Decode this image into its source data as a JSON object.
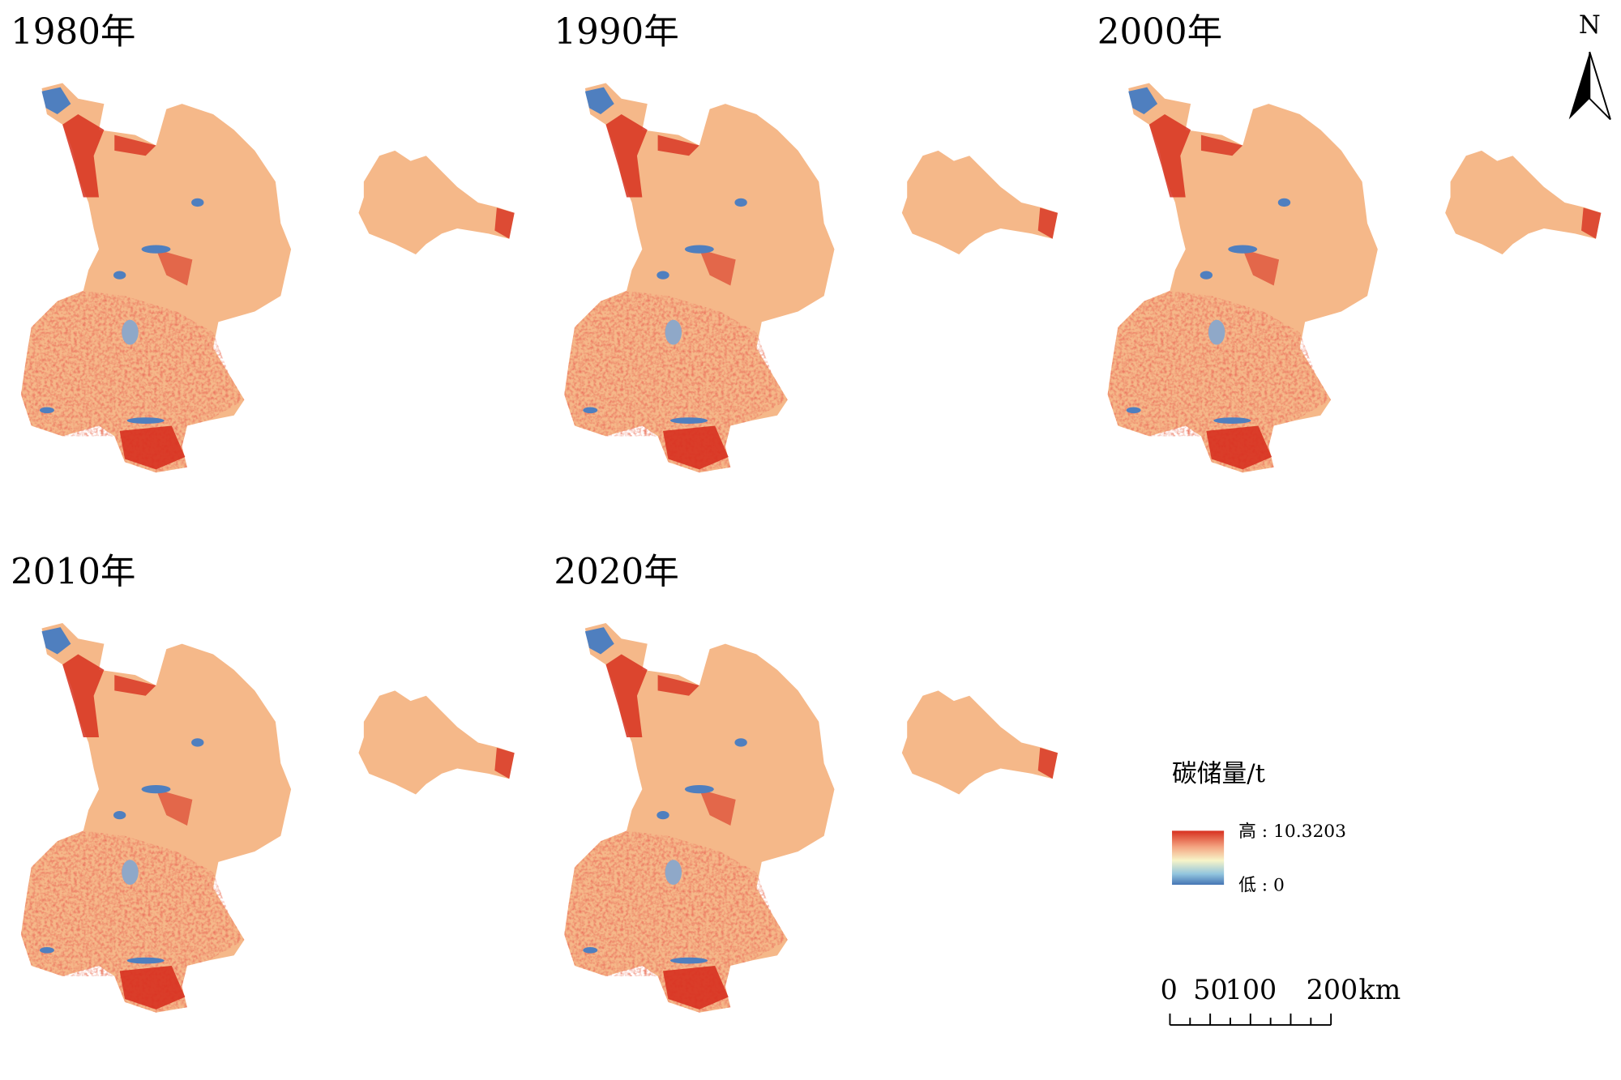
{
  "panels": [
    {
      "title": "1980年"
    },
    {
      "title": "1990年"
    },
    {
      "title": "2000年"
    },
    {
      "title": "2010年"
    },
    {
      "title": "2020年"
    }
  ],
  "legend": {
    "title": "碳储量/t",
    "high": "高 : 10.3203",
    "low": "低 : 0"
  },
  "scale_bar": {
    "labels": [
      "0",
      "50",
      "100",
      "200",
      "km"
    ]
  },
  "north_arrow": {
    "label": "N"
  }
}
